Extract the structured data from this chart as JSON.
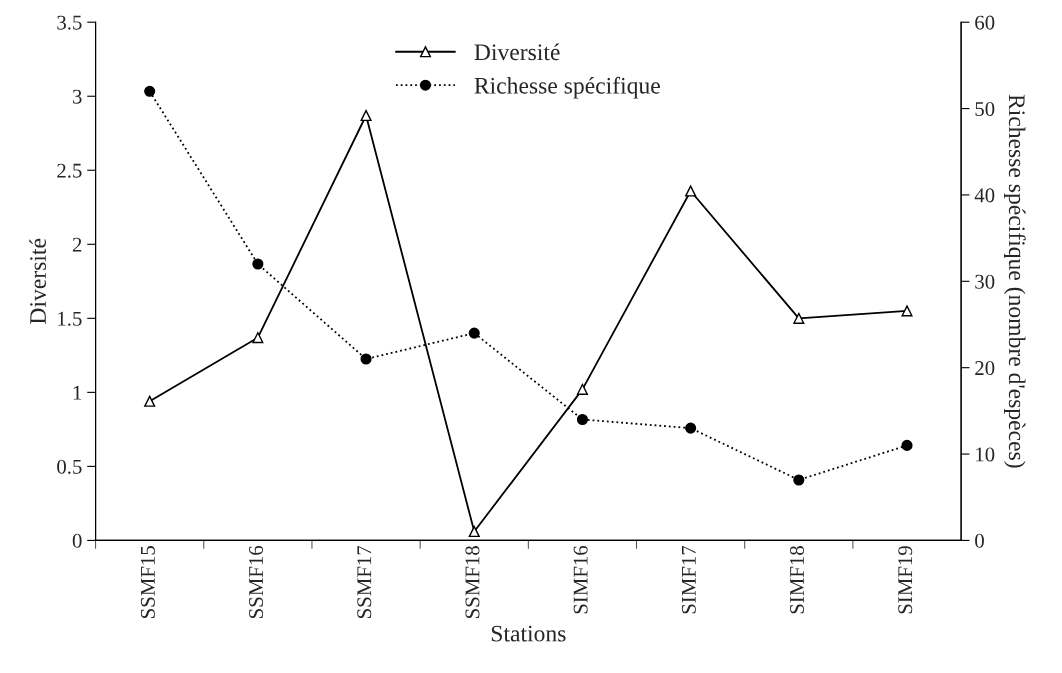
{
  "chart_data": {
    "type": "line",
    "xlabel": "Stations",
    "ylabel": "Diversité",
    "y2label": "Richesse spécifique (nombre d'espèces)",
    "categories": [
      "SSMF15",
      "SSMF16",
      "SSMF17",
      "SSMF18",
      "SIMF16",
      "SIMF17",
      "SIMF18",
      "SIMF19"
    ],
    "series": [
      {
        "name": "Diversité",
        "color": "#000000",
        "marker": "triangle",
        "line_style": "solid",
        "values": [
          0.94,
          1.37,
          2.87,
          0.06,
          1.02,
          2.36,
          1.5,
          1.55
        ]
      },
      {
        "name": "Richesse spécifique",
        "color": "#000000",
        "marker": "circle",
        "line_style": "dotted",
        "axis": "y2",
        "values": [
          52,
          32,
          21,
          24,
          14,
          13,
          7,
          11
        ]
      }
    ],
    "ylim": [
      0,
      3.5
    ],
    "yticks": [
      0,
      0.5,
      1,
      1.5,
      2,
      2.5,
      3,
      3.5
    ],
    "y2lim": [
      0,
      60
    ],
    "y2ticks": [
      0,
      10,
      20,
      30,
      40,
      50,
      60
    ],
    "grid": false,
    "legend": "top"
  }
}
